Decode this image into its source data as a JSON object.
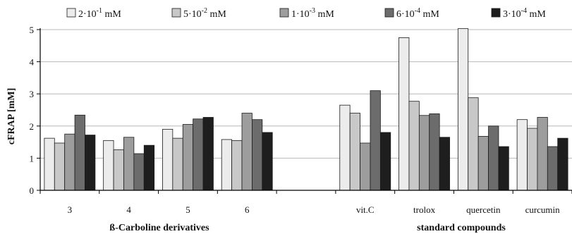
{
  "chart_data": {
    "type": "bar",
    "ylabel": "cFRAP [mM]",
    "ylim": [
      0,
      5
    ],
    "yticks": [
      "0",
      "1",
      "2",
      "3",
      "4",
      "5"
    ],
    "grid": true,
    "legend_position": "top",
    "categories": [
      "3",
      "4",
      "5",
      "6",
      "",
      "vit.C",
      "trolox",
      "quercetin",
      "curcumin"
    ],
    "group_labels": [
      "ß-Carboline derivatives",
      "standard compounds"
    ],
    "series": [
      {
        "name": "2·10⁻¹ mM",
        "base": "2·10",
        "exp": "-1",
        "unit": "mM",
        "color": "#ececec",
        "values": [
          1.62,
          1.55,
          1.9,
          1.58,
          null,
          2.65,
          4.75,
          5.03,
          2.2
        ]
      },
      {
        "name": "5·10⁻² mM",
        "base": "5·10",
        "exp": "-2",
        "unit": "mM",
        "color": "#c8c8c8",
        "values": [
          1.47,
          1.26,
          1.62,
          1.55,
          null,
          2.4,
          2.77,
          2.88,
          1.93
        ]
      },
      {
        "name": "1·10⁻³ mM",
        "base": "1·10",
        "exp": "-3",
        "unit": "mM",
        "color": "#9d9d9d",
        "values": [
          1.75,
          1.65,
          2.05,
          2.4,
          null,
          1.47,
          2.33,
          1.68,
          2.27
        ]
      },
      {
        "name": "6·10⁻⁴ mM",
        "base": "6·10",
        "exp": "-4",
        "unit": "mM",
        "color": "#6c6c6c",
        "values": [
          2.34,
          1.14,
          2.22,
          2.2,
          null,
          3.1,
          2.38,
          2.0,
          1.36
        ]
      },
      {
        "name": "3·10⁻⁴ mM",
        "base": "3·10",
        "exp": "-4",
        "unit": "mM",
        "color": "#1e1e1e",
        "values": [
          1.72,
          1.4,
          2.27,
          1.8,
          null,
          1.8,
          1.65,
          1.36,
          1.62
        ]
      }
    ]
  }
}
